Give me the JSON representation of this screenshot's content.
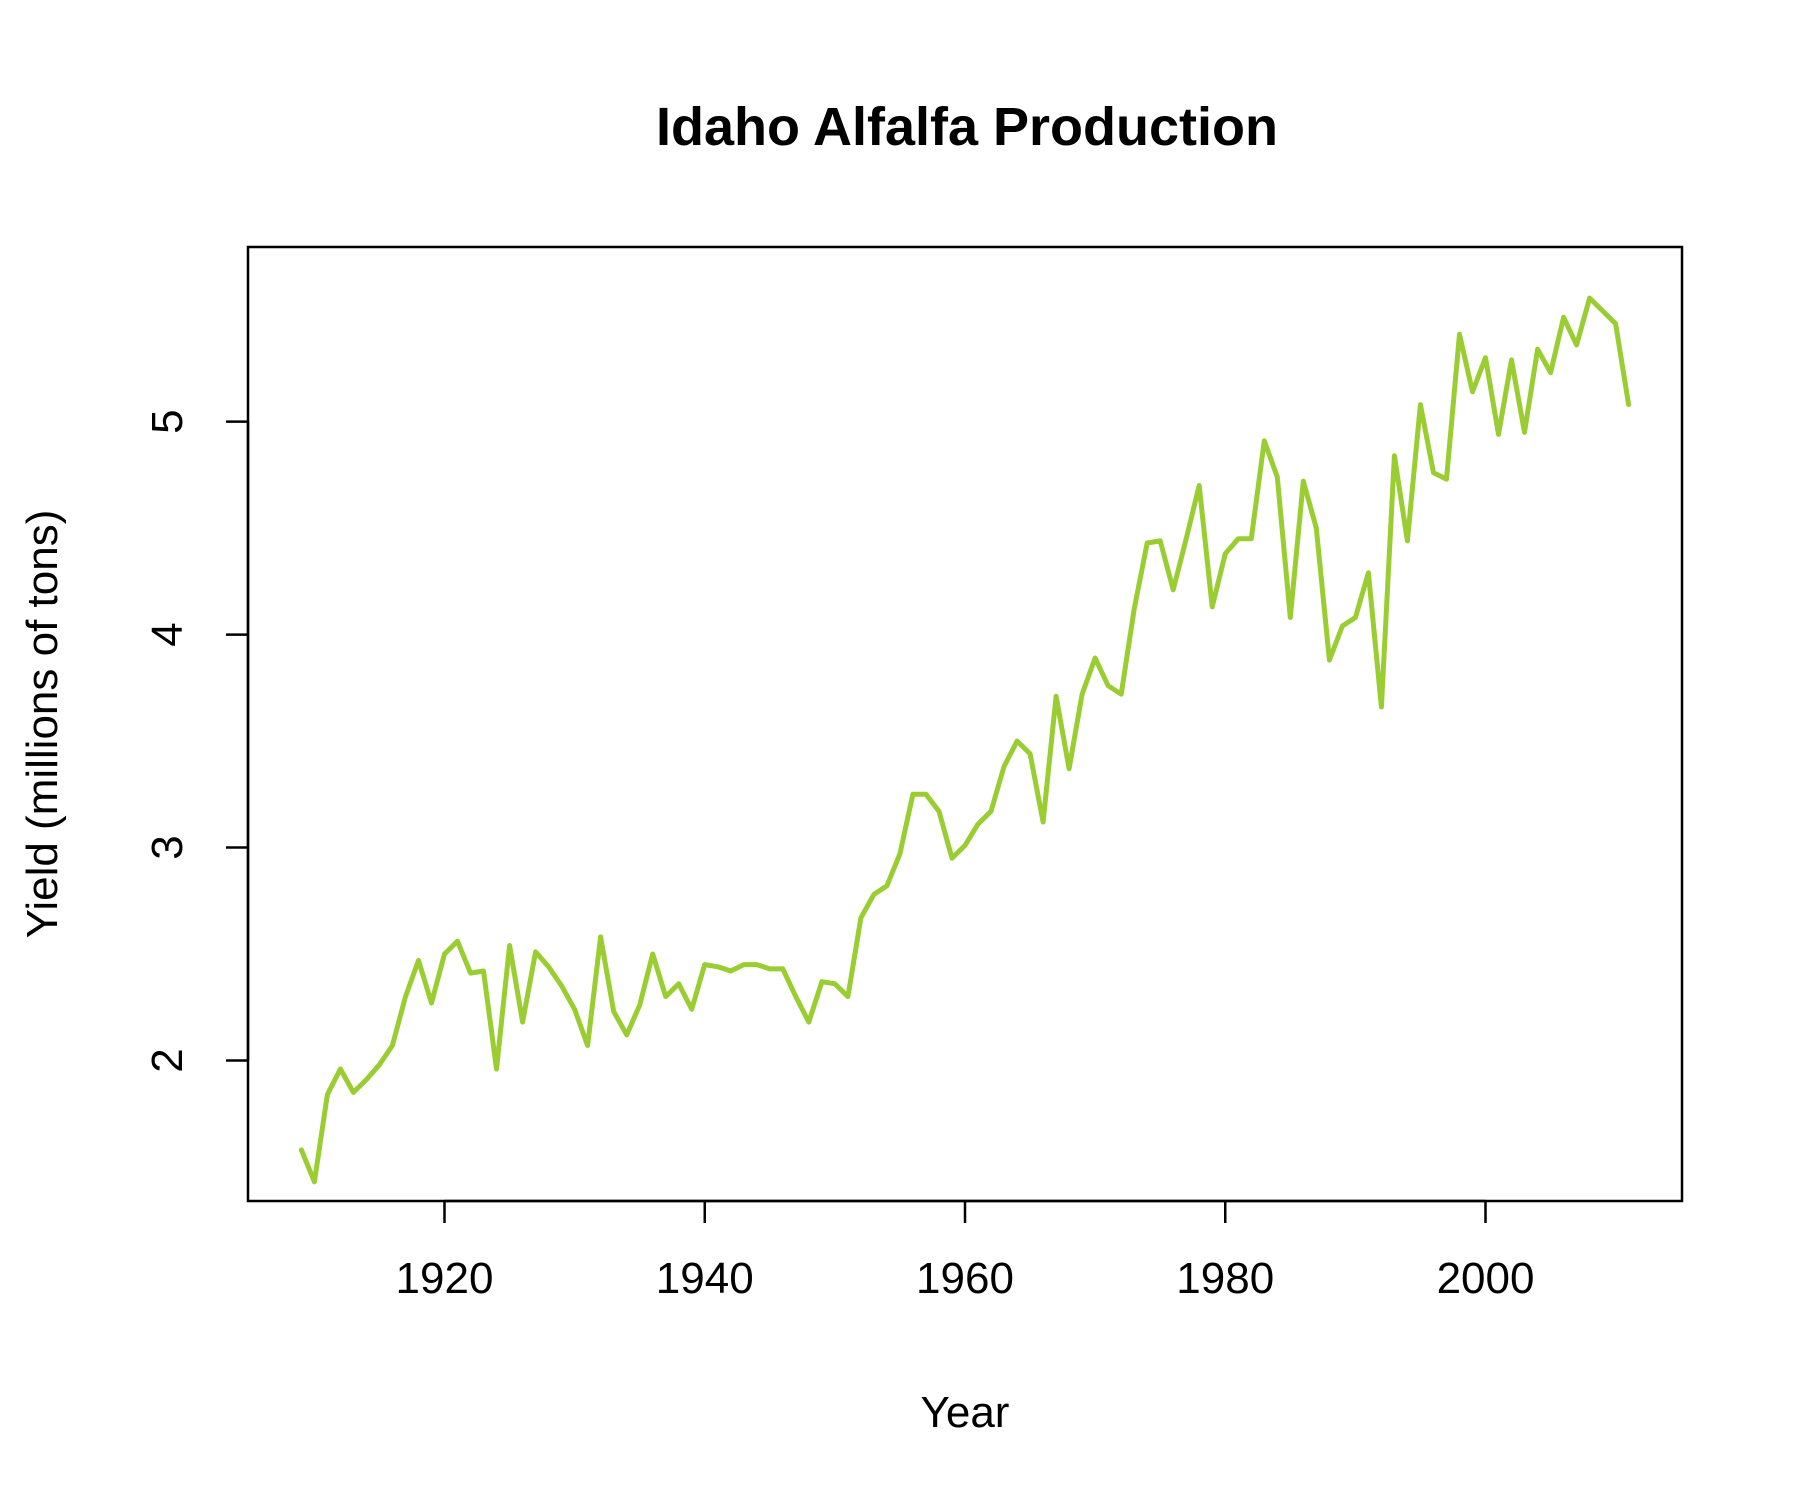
{
  "chart_data": {
    "type": "line",
    "title": "Idaho Alfalfa Production",
    "xlabel": "Year",
    "ylabel": "Yield (millions of tons)",
    "xlim": [
      1904.9,
      2015.1
    ],
    "ylim": [
      1.34,
      5.82
    ],
    "xticks": [
      1920,
      1940,
      1960,
      1980,
      2000
    ],
    "yticks": [
      2,
      3,
      4,
      5
    ],
    "grid": false,
    "legend": "none",
    "line_color": "#9ACD32",
    "series": [
      {
        "x": [
          1909,
          1910,
          1911,
          1912,
          1913,
          1914,
          1915,
          1916,
          1917,
          1918,
          1919,
          1920,
          1921,
          1922,
          1923,
          1924,
          1925,
          1926,
          1927,
          1928,
          1929,
          1930,
          1931,
          1932,
          1933,
          1934,
          1935,
          1936,
          1937,
          1938,
          1939,
          1940,
          1941,
          1942,
          1943,
          1944,
          1945,
          1946,
          1947,
          1948,
          1949,
          1950,
          1951,
          1952,
          1953,
          1954,
          1955,
          1956,
          1957,
          1958,
          1959,
          1960,
          1961,
          1962,
          1963,
          1964,
          1965,
          1966,
          1967,
          1968,
          1969,
          1970,
          1971,
          1972,
          1973,
          1974,
          1975,
          1976,
          1977,
          1978,
          1979,
          1980,
          1981,
          1982,
          1983,
          1984,
          1985,
          1986,
          1987,
          1988,
          1989,
          1990,
          1991,
          1992,
          1993,
          1994,
          1995,
          1996,
          1997,
          1998,
          1999,
          2000,
          2001,
          2002,
          2003,
          2004,
          2005,
          2006,
          2007,
          2008,
          2009,
          2010,
          2011
        ],
        "values": [
          1.58,
          1.43,
          1.84,
          1.96,
          1.85,
          1.91,
          1.98,
          2.07,
          2.3,
          2.47,
          2.27,
          2.5,
          2.56,
          2.41,
          2.42,
          1.96,
          2.54,
          2.18,
          2.51,
          2.44,
          2.35,
          2.24,
          2.07,
          2.58,
          2.23,
          2.12,
          2.26,
          2.5,
          2.3,
          2.36,
          2.24,
          2.45,
          2.44,
          2.42,
          2.45,
          2.45,
          2.43,
          2.43,
          2.3,
          2.18,
          2.37,
          2.36,
          2.3,
          2.67,
          2.78,
          2.82,
          2.97,
          3.25,
          3.25,
          3.17,
          2.95,
          3.01,
          3.11,
          3.17,
          3.38,
          3.5,
          3.44,
          3.12,
          3.71,
          3.37,
          3.72,
          3.89,
          3.76,
          3.72,
          4.12,
          4.43,
          4.44,
          4.21,
          4.45,
          4.7,
          4.13,
          4.38,
          4.45,
          4.45,
          4.91,
          4.74,
          4.08,
          4.72,
          4.5,
          3.88,
          4.04,
          4.08,
          4.29,
          3.66,
          4.84,
          4.44,
          5.08,
          4.76,
          4.73,
          5.41,
          5.14,
          5.3,
          4.94,
          5.29,
          4.95,
          5.34,
          5.23,
          5.49,
          5.36,
          5.58,
          5.52,
          5.46,
          5.08
        ]
      }
    ]
  }
}
